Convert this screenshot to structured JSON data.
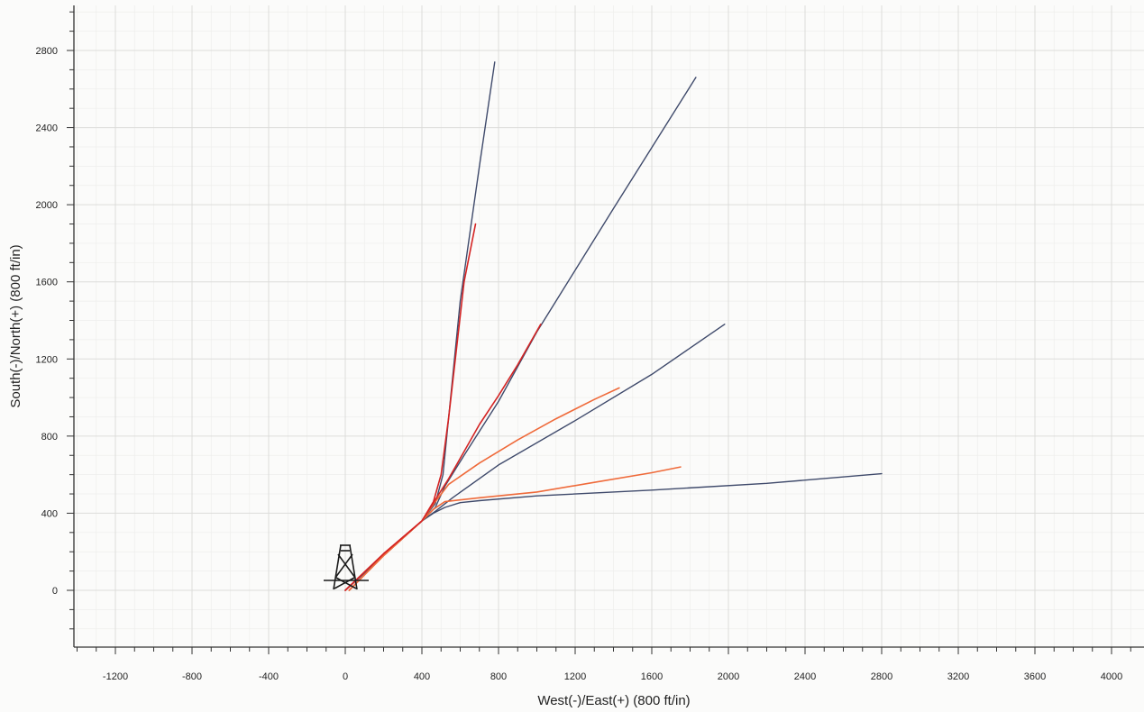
{
  "chart_data": {
    "type": "line",
    "title": "",
    "xlabel": "West(-)/East(+) (800 ft/in)",
    "ylabel": "South(-)/North(+) (800 ft/in)",
    "xlim": [
      -1400,
      4100
    ],
    "ylim": [
      -300,
      3050
    ],
    "x_ticks": [
      -1200,
      -800,
      -400,
      0,
      400,
      800,
      1200,
      1600,
      2000,
      2400,
      2800,
      3200,
      3600,
      4000
    ],
    "y_ticks": [
      0,
      400,
      800,
      1200,
      1600,
      2000,
      2400,
      2800
    ],
    "grid": true,
    "legend": "none",
    "colors": {
      "planned": "#3f4a6b",
      "actual_red": "#d42424",
      "actual_orange": "#ef6a3a",
      "axis": "#333333",
      "grid": "#e3e3e1"
    },
    "surface_location_icon": "drilling-rig-icon",
    "series": [
      {
        "kind": "planned",
        "x": [
          0,
          200,
          400,
          470,
          510,
          560,
          600,
          700,
          780
        ],
        "y": [
          0,
          180,
          360,
          450,
          600,
          1100,
          1500,
          2200,
          2740
        ]
      },
      {
        "kind": "planned",
        "x": [
          0,
          200,
          400,
          470,
          520,
          620,
          800,
          1000,
          1400,
          1830
        ],
        "y": [
          0,
          180,
          360,
          430,
          540,
          700,
          980,
          1340,
          1980,
          2660
        ]
      },
      {
        "kind": "planned",
        "x": [
          0,
          200,
          400,
          470,
          560,
          800,
          1200,
          1600,
          1980
        ],
        "y": [
          0,
          180,
          360,
          410,
          480,
          650,
          880,
          1120,
          1380
        ]
      },
      {
        "kind": "planned",
        "x": [
          0,
          200,
          400,
          460,
          520,
          600,
          700,
          1000,
          1600,
          2200,
          2800
        ],
        "y": [
          0,
          180,
          360,
          400,
          430,
          455,
          465,
          490,
          520,
          555,
          605
        ]
      },
      {
        "kind": "actual_red",
        "x": [
          0,
          200,
          400,
          460,
          500,
          540,
          580,
          620,
          680
        ],
        "y": [
          0,
          190,
          360,
          460,
          600,
          900,
          1250,
          1600,
          1900
        ]
      },
      {
        "kind": "actual_red",
        "x": [
          0,
          200,
          400,
          470,
          540,
          620,
          700,
          800,
          900,
          1020
        ],
        "y": [
          0,
          190,
          360,
          470,
          580,
          720,
          860,
          1010,
          1170,
          1380
        ]
      },
      {
        "kind": "actual_orange",
        "x": [
          20,
          200,
          400,
          470,
          540,
          700,
          900,
          1100,
          1300,
          1430
        ],
        "y": [
          0,
          180,
          360,
          460,
          550,
          660,
          780,
          890,
          990,
          1050
        ]
      },
      {
        "kind": "actual_orange",
        "x": [
          20,
          200,
          400,
          460,
          520,
          700,
          1000,
          1300,
          1600,
          1750
        ],
        "y": [
          0,
          180,
          360,
          420,
          460,
          480,
          510,
          560,
          610,
          640
        ]
      }
    ]
  }
}
